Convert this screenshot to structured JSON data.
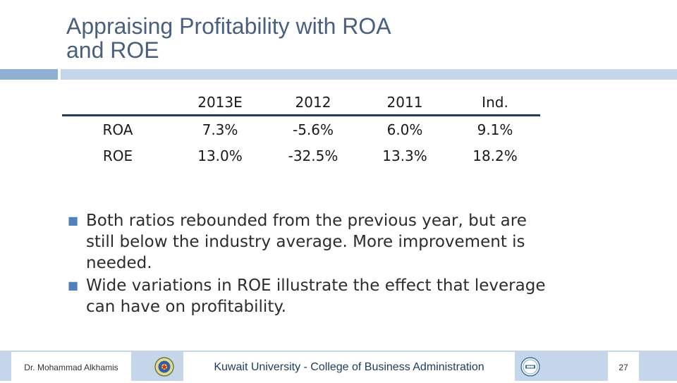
{
  "slide": {
    "title_line1": "Appraising Profitability with ROA",
    "title_line2": "and ROE"
  },
  "table": {
    "headers": [
      "",
      "2013E",
      "2012",
      "2011",
      "Ind."
    ],
    "rows": [
      {
        "label": "ROA",
        "values": [
          "7.3%",
          "-5.6%",
          "6.0%",
          "9.1%"
        ]
      },
      {
        "label": "ROE",
        "values": [
          "13.0%",
          "-32.5%",
          "13.3%",
          "18.2%"
        ]
      }
    ]
  },
  "bullets": [
    "Both ratios rebounded from the previous year, but are still below the industry average.  More improvement is needed.",
    "Wide variations in ROE illustrate the effect that leverage can have on profitability."
  ],
  "footer": {
    "author": "Dr. Mohammad Alkhamis",
    "institution": "Kuwait University - College of Business Administration",
    "page_number": "27",
    "left_seal_icon": "university-seal-icon",
    "right_seal_icon": "accreditation-seal-icon"
  },
  "colors": {
    "title": "#4a5f7e",
    "accent_bar_dark": "#8fb0d3",
    "accent_bar_light": "#c5d6ea",
    "table_rule": "#1f3c60",
    "bullet_marker": "#4f81bd"
  }
}
